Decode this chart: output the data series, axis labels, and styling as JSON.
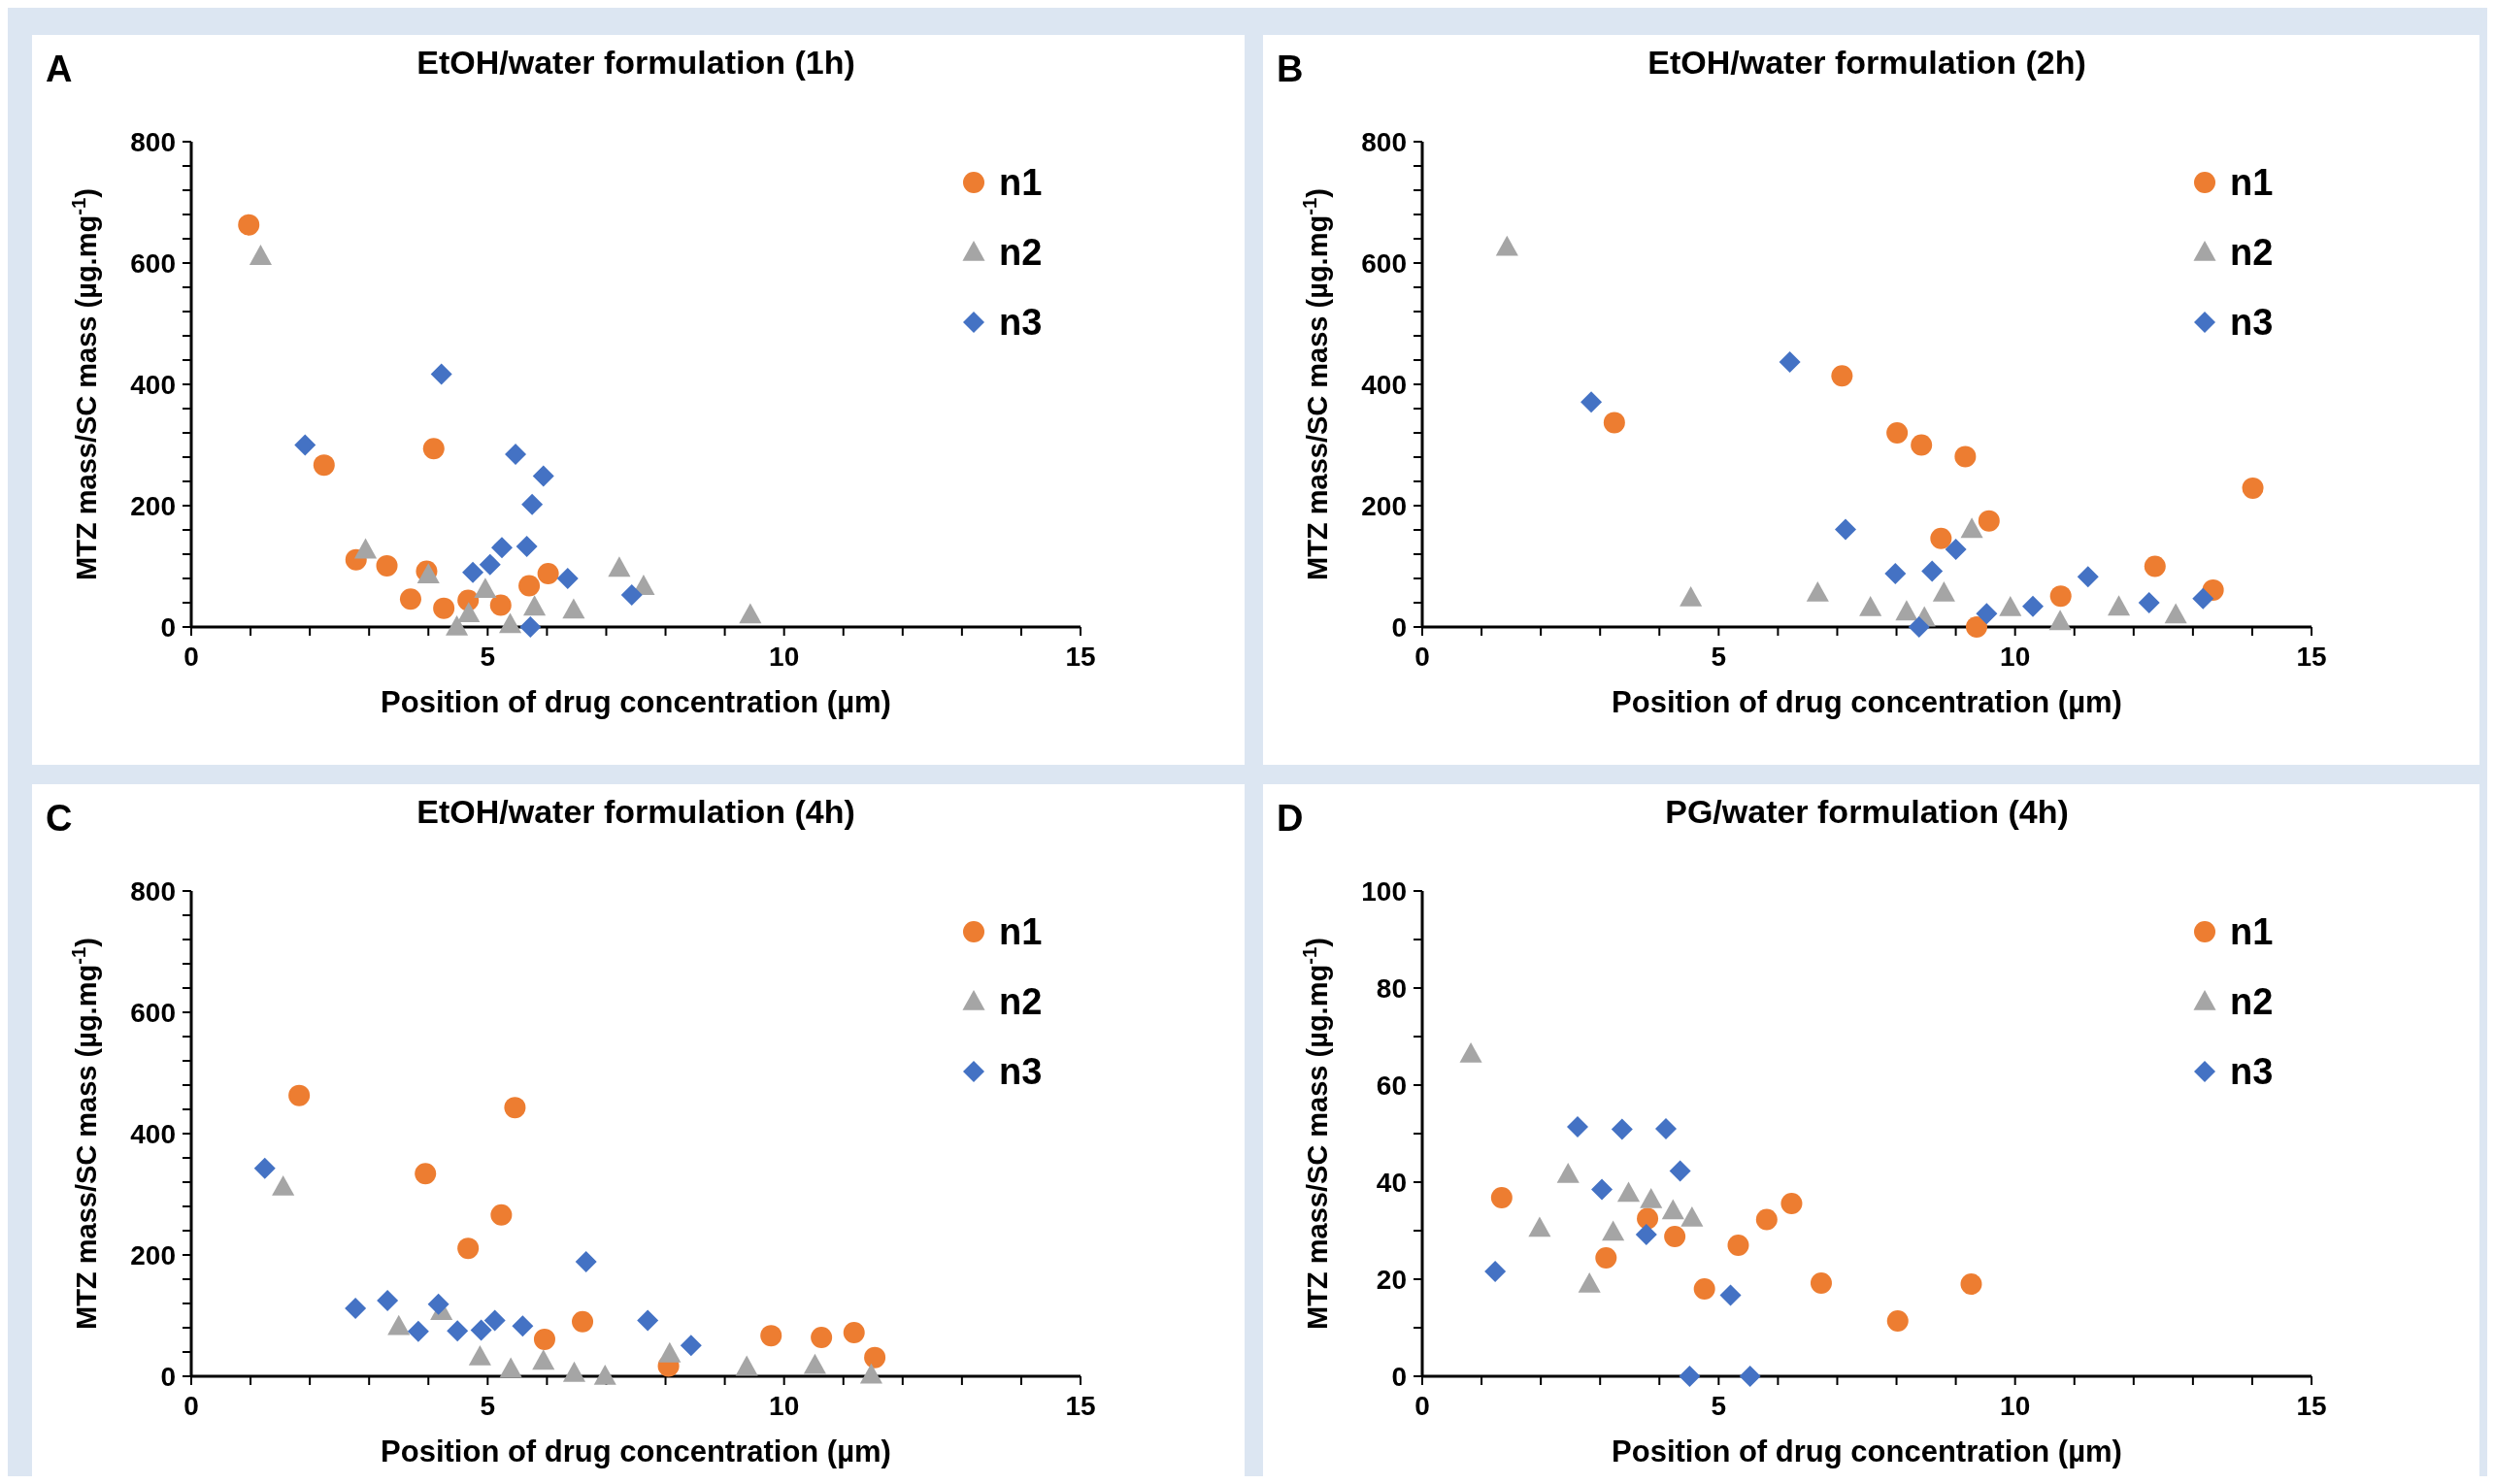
{
  "chart_data": [
    {
      "type": "scatter",
      "title": "EtOH/water formulation (1h)",
      "xlabel": "Position of drug concentration (µm)",
      "ylabel": "MTZ mass/SC mass (µg.mg$^{-1}$)",
      "annotations": [
        "A"
      ],
      "legend": "top right",
      "grid": false,
      "xlim": [
        0,
        15
      ],
      "xticks": [
        0,
        {
          "value": 1,
          "label": null
        },
        {
          "value": 2,
          "label": null
        },
        {
          "value": 3,
          "label": null
        },
        {
          "value": 4,
          "label": null
        },
        5,
        {
          "value": 6,
          "label": null
        },
        {
          "value": 7,
          "label": null
        },
        {
          "value": 8,
          "label": null
        },
        {
          "value": 9,
          "label": null
        },
        10,
        {
          "value": 11,
          "label": null
        },
        {
          "value": 12,
          "label": null
        },
        {
          "value": 13,
          "label": null
        },
        {
          "value": 14,
          "label": null
        },
        15
      ],
      "ylim": [
        0,
        800
      ],
      "yticks": [
        0,
        {
          "value": 40,
          "label": null
        },
        {
          "value": 80,
          "label": null
        },
        {
          "value": 120,
          "label": null
        },
        {
          "value": 160,
          "label": null
        },
        200,
        {
          "value": 240,
          "label": null
        },
        {
          "value": 280,
          "label": null
        },
        {
          "value": 320,
          "label": null
        },
        {
          "value": 360,
          "label": null
        },
        400,
        {
          "value": 440,
          "label": null
        },
        {
          "value": 480,
          "label": null
        },
        {
          "value": 520,
          "label": null
        },
        {
          "value": 560,
          "label": null
        },
        600,
        {
          "value": 640,
          "label": null
        },
        {
          "value": 680,
          "label": null
        },
        {
          "value": 720,
          "label": null
        },
        {
          "value": 760,
          "label": null
        },
        800
      ],
      "series": [
        {
          "name": "n1",
          "color": "#ed7d31",
          "marker": "circle",
          "x": [
            0.97,
            2.24,
            4.09,
            2.78,
            3.3,
            3.97,
            3.7,
            4.26,
            4.67,
            5.22,
            5.7,
            6.02
          ],
          "values": [
            663,
            267,
            294,
            111,
            101,
            92,
            46,
            31,
            44,
            36,
            68,
            88
          ]
        },
        {
          "name": "n2",
          "color": "#a5a5a5",
          "marker": "triangle",
          "x": [
            1.17,
            2.94,
            4.0,
            4.48,
            4.68,
            4.96,
            5.38,
            5.79,
            6.45,
            7.22,
            7.63,
            9.43
          ],
          "values": [
            611,
            127,
            86,
            0,
            22,
            62,
            4,
            33,
            28,
            97,
            67,
            20
          ]
        },
        {
          "name": "n3",
          "color": "#4472c4",
          "marker": "diamond",
          "x": [
            4.22,
            1.92,
            5.47,
            5.94,
            5.75,
            5.24,
            5.66,
            5.04,
            4.75,
            6.35,
            7.43,
            5.72
          ],
          "values": [
            417,
            300,
            285,
            249,
            202,
            131,
            133,
            103,
            90,
            80,
            53,
            0
          ]
        }
      ]
    },
    {
      "type": "scatter",
      "title": "EtOH/water formulation (2h)",
      "xlabel": "Position of drug concentration (µm)",
      "ylabel": "MTZ mass/SC mass (µg.mg$^{-1}$)",
      "annotations": [
        "B"
      ],
      "legend": "top right",
      "grid": false,
      "xlim": [
        0,
        15
      ],
      "xticks": [
        0,
        {
          "value": 1,
          "label": null
        },
        {
          "value": 2,
          "label": null
        },
        {
          "value": 3,
          "label": null
        },
        {
          "value": 4,
          "label": null
        },
        5,
        {
          "value": 6,
          "label": null
        },
        {
          "value": 7,
          "label": null
        },
        {
          "value": 8,
          "label": null
        },
        {
          "value": 9,
          "label": null
        },
        10,
        {
          "value": 11,
          "label": null
        },
        {
          "value": 12,
          "label": null
        },
        {
          "value": 13,
          "label": null
        },
        {
          "value": 14,
          "label": null
        },
        15
      ],
      "ylim": [
        0,
        800
      ],
      "yticks": [
        0,
        {
          "value": 40,
          "label": null
        },
        {
          "value": 80,
          "label": null
        },
        {
          "value": 120,
          "label": null
        },
        {
          "value": 160,
          "label": null
        },
        200,
        {
          "value": 240,
          "label": null
        },
        {
          "value": 280,
          "label": null
        },
        {
          "value": 320,
          "label": null
        },
        {
          "value": 360,
          "label": null
        },
        400,
        {
          "value": 440,
          "label": null
        },
        {
          "value": 480,
          "label": null
        },
        {
          "value": 520,
          "label": null
        },
        {
          "value": 560,
          "label": null
        },
        600,
        {
          "value": 640,
          "label": null
        },
        {
          "value": 680,
          "label": null
        },
        {
          "value": 720,
          "label": null
        },
        {
          "value": 760,
          "label": null
        },
        800
      ],
      "series": [
        {
          "name": "n1",
          "color": "#ed7d31",
          "marker": "circle",
          "x": [
            3.24,
            7.08,
            8.01,
            8.42,
            9.16,
            9.56,
            8.75,
            9.35,
            10.77,
            12.36,
            13.34,
            14.01
          ],
          "values": [
            337,
            414,
            320,
            300,
            281,
            175,
            146,
            0,
            51,
            100,
            61,
            229
          ]
        },
        {
          "name": "n2",
          "color": "#a5a5a5",
          "marker": "triangle",
          "x": [
            1.43,
            4.53,
            6.67,
            7.56,
            8.17,
            8.47,
            8.8,
            9.27,
            9.92,
            10.76,
            11.75,
            12.71
          ],
          "values": [
            626,
            48,
            56,
            32,
            25,
            15,
            56,
            161,
            32,
            9,
            33,
            20
          ]
        },
        {
          "name": "n3",
          "color": "#4472c4",
          "marker": "diamond",
          "x": [
            2.85,
            6.2,
            7.14,
            7.98,
            8.6,
            9.0,
            8.38,
            9.52,
            10.3,
            11.23,
            12.26,
            13.17
          ],
          "values": [
            371,
            437,
            161,
            88,
            92,
            128,
            0,
            22,
            34,
            83,
            40,
            47
          ]
        }
      ]
    },
    {
      "type": "scatter",
      "title": "EtOH/water formulation (4h)",
      "xlabel": "Position of drug concentration (µm)",
      "ylabel": "MTZ mass/SC mass (µg.mg$^{-1}$)",
      "annotations": [
        "C"
      ],
      "legend": "top right",
      "grid": false,
      "xlim": [
        0,
        15
      ],
      "xticks": [
        0,
        {
          "value": 1,
          "label": null
        },
        {
          "value": 2,
          "label": null
        },
        {
          "value": 3,
          "label": null
        },
        {
          "value": 4,
          "label": null
        },
        5,
        {
          "value": 6,
          "label": null
        },
        {
          "value": 7,
          "label": null
        },
        {
          "value": 8,
          "label": null
        },
        {
          "value": 9,
          "label": null
        },
        10,
        {
          "value": 11,
          "label": null
        },
        {
          "value": 12,
          "label": null
        },
        {
          "value": 13,
          "label": null
        },
        {
          "value": 14,
          "label": null
        },
        15
      ],
      "ylim": [
        0,
        800
      ],
      "yticks": [
        0,
        {
          "value": 40,
          "label": null
        },
        {
          "value": 80,
          "label": null
        },
        {
          "value": 120,
          "label": null
        },
        {
          "value": 160,
          "label": null
        },
        200,
        {
          "value": 240,
          "label": null
        },
        {
          "value": 280,
          "label": null
        },
        {
          "value": 320,
          "label": null
        },
        {
          "value": 360,
          "label": null
        },
        400,
        {
          "value": 440,
          "label": null
        },
        {
          "value": 480,
          "label": null
        },
        {
          "value": 520,
          "label": null
        },
        {
          "value": 560,
          "label": null
        },
        600,
        {
          "value": 640,
          "label": null
        },
        {
          "value": 680,
          "label": null
        },
        {
          "value": 720,
          "label": null
        },
        {
          "value": 760,
          "label": null
        },
        800
      ],
      "series": [
        {
          "name": "n1",
          "color": "#ed7d31",
          "marker": "circle",
          "x": [
            1.82,
            5.46,
            3.95,
            5.23,
            4.67,
            6.6,
            5.96,
            8.05,
            9.78,
            10.63,
            11.18,
            11.53
          ],
          "values": [
            463,
            443,
            334,
            266,
            211,
            90,
            61,
            17,
            67,
            64,
            72,
            31
          ]
        },
        {
          "name": "n2",
          "color": "#a5a5a5",
          "marker": "triangle",
          "x": [
            1.55,
            3.5,
            4.22,
            4.87,
            5.39,
            5.94,
            6.46,
            6.98,
            8.07,
            9.37,
            10.52,
            11.47
          ],
          "values": [
            312,
            82,
            107,
            32,
            12,
            25,
            5,
            0,
            37,
            15,
            18,
            2
          ]
        },
        {
          "name": "n3",
          "color": "#4472c4",
          "marker": "diamond",
          "x": [
            1.24,
            2.77,
            3.31,
            3.83,
            4.17,
            4.49,
            4.89,
            5.12,
            5.59,
            6.66,
            7.7,
            8.43
          ],
          "values": [
            343,
            112,
            125,
            74,
            119,
            75,
            76,
            92,
            83,
            189,
            92,
            51
          ]
        }
      ]
    },
    {
      "type": "scatter",
      "title": "PG/water formulation (4h)",
      "xlabel": "Position of drug concentration (µm)",
      "ylabel": "MTZ mass/SC mass (µg.mg$^{-1}$)",
      "annotations": [
        "D"
      ],
      "legend": "top right",
      "grid": false,
      "xlim": [
        0,
        15
      ],
      "xticks": [
        0,
        {
          "value": 1,
          "label": null
        },
        {
          "value": 2,
          "label": null
        },
        {
          "value": 3,
          "label": null
        },
        {
          "value": 4,
          "label": null
        },
        5,
        {
          "value": 6,
          "label": null
        },
        {
          "value": 7,
          "label": null
        },
        {
          "value": 8,
          "label": null
        },
        {
          "value": 9,
          "label": null
        },
        10,
        {
          "value": 11,
          "label": null
        },
        {
          "value": 12,
          "label": null
        },
        {
          "value": 13,
          "label": null
        },
        {
          "value": 14,
          "label": null
        },
        15
      ],
      "ylim": [
        0,
        100
      ],
      "yticks": [
        0,
        {
          "value": 10,
          "label": null
        },
        20,
        {
          "value": 30,
          "label": null
        },
        40,
        {
          "value": 50,
          "label": null
        },
        60,
        {
          "value": 70,
          "label": null
        },
        80,
        {
          "value": 90,
          "label": null
        },
        100
      ],
      "series": [
        {
          "name": "n1",
          "color": "#ed7d31",
          "marker": "circle",
          "x": [
            1.34,
            3.1,
            3.8,
            4.26,
            4.76,
            5.33,
            5.81,
            6.23,
            6.73,
            8.02,
            9.26
          ],
          "values": [
            36.8,
            24.4,
            32.5,
            28.8,
            18.0,
            27.0,
            32.3,
            35.6,
            19.2,
            11.4,
            19.0
          ]
        },
        {
          "name": "n2",
          "color": "#a5a5a5",
          "marker": "triangle",
          "x": [
            0.82,
            1.98,
            2.46,
            2.82,
            3.22,
            3.48,
            3.86,
            4.23,
            4.55
          ],
          "values": [
            66.4,
            30.5,
            41.6,
            19.0,
            29.7,
            37.7,
            36.4,
            34.1,
            32.6
          ]
        },
        {
          "name": "n3",
          "color": "#4472c4",
          "marker": "diamond",
          "x": [
            1.23,
            2.62,
            3.37,
            4.11,
            4.35,
            3.03,
            3.78,
            5.2,
            4.51,
            5.53
          ],
          "values": [
            21.6,
            51.4,
            50.9,
            51.0,
            42.3,
            38.5,
            29.2,
            16.7,
            0,
            0
          ]
        }
      ]
    }
  ]
}
